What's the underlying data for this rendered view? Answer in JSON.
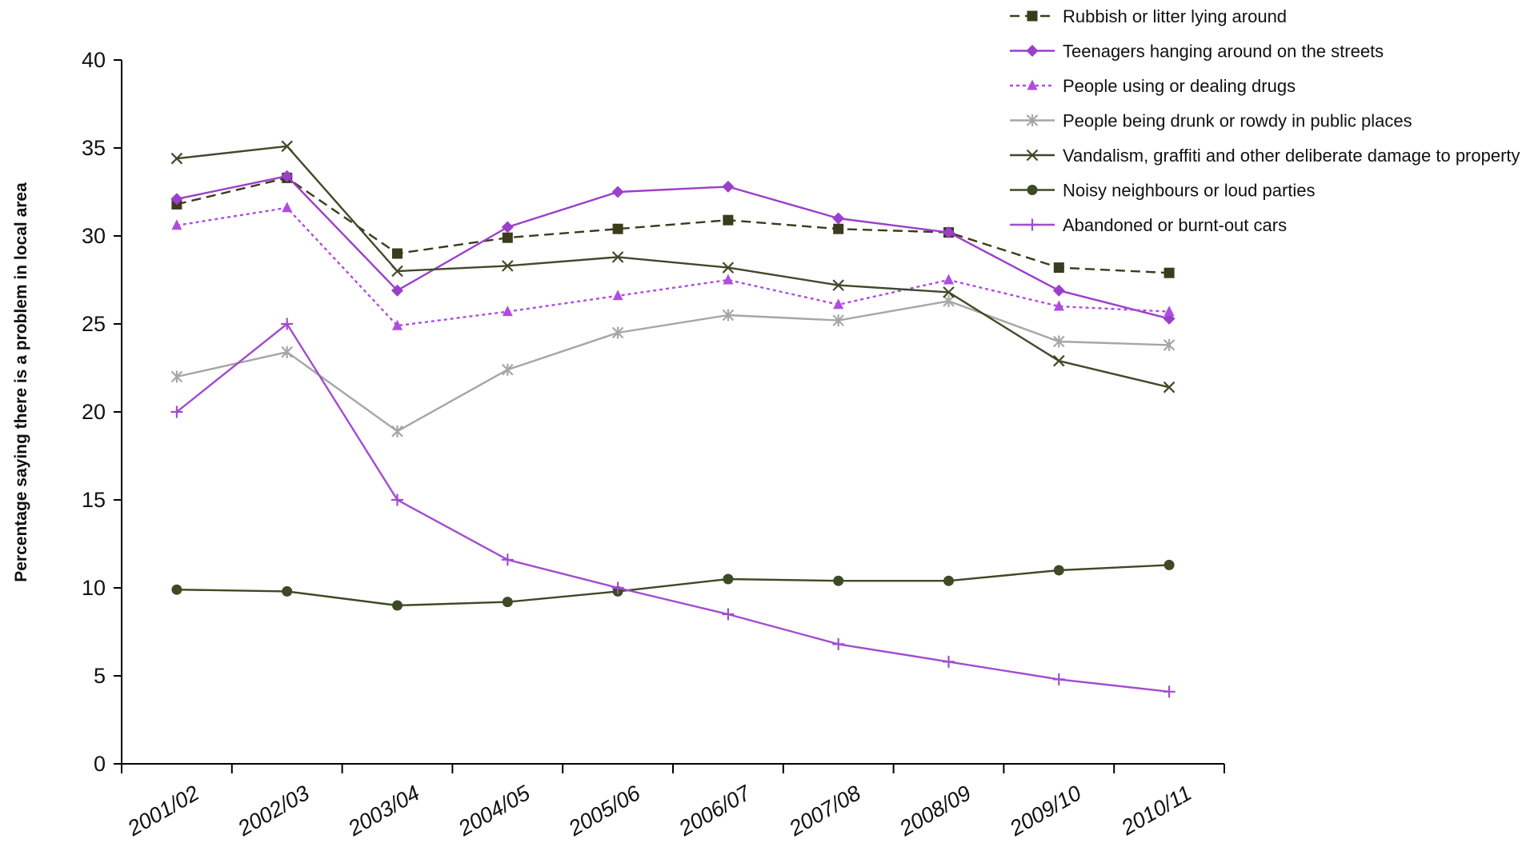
{
  "chart_data": {
    "type": "line",
    "title": "",
    "xlabel": "",
    "ylabel": "Percentage saying there is a problem in local area",
    "ylim": [
      0,
      40
    ],
    "yticks": [
      0,
      5,
      10,
      15,
      20,
      25,
      30,
      35,
      40
    ],
    "grid": false,
    "legend_position": "top-right",
    "categories": [
      "2001/02",
      "2002/03",
      "2003/04",
      "2004/05",
      "2005/06",
      "2006/07",
      "2007/08",
      "2008/09",
      "2009/10",
      "2010/11"
    ],
    "series": [
      {
        "name": "Rubbish or litter lying around",
        "color": "#3b3b1e",
        "dash": "dashed",
        "marker": "square",
        "values": [
          31.8,
          33.3,
          29.0,
          29.9,
          30.4,
          30.9,
          30.4,
          30.2,
          28.2,
          27.9
        ]
      },
      {
        "name": "Teenagers hanging around on the streets",
        "color": "#9b3fc9",
        "dash": "solid",
        "marker": "diamond",
        "values": [
          32.1,
          33.4,
          26.9,
          30.5,
          32.5,
          32.8,
          31.0,
          30.2,
          26.9,
          25.3
        ]
      },
      {
        "name": "People using or dealing drugs",
        "color": "#b04ce0",
        "dash": "dotted",
        "marker": "triangle",
        "values": [
          30.6,
          31.6,
          24.9,
          25.7,
          26.6,
          27.5,
          26.1,
          27.5,
          26.0,
          25.7
        ]
      },
      {
        "name": "People being drunk or rowdy in public places",
        "color": "#a6a6a6",
        "dash": "solid",
        "marker": "asterisk",
        "values": [
          22.0,
          23.4,
          18.9,
          22.4,
          24.5,
          25.5,
          25.2,
          26.3,
          24.0,
          23.8
        ]
      },
      {
        "name": "Vandalism, graffiti and other deliberate damage to property",
        "color": "#3f4a28",
        "dash": "solid",
        "marker": "x",
        "values": [
          34.4,
          35.1,
          28.0,
          28.3,
          28.8,
          28.2,
          27.2,
          26.8,
          22.9,
          21.4
        ]
      },
      {
        "name": "Noisy neighbours or loud parties",
        "color": "#3d4a25",
        "dash": "solid",
        "marker": "circle",
        "values": [
          9.9,
          9.8,
          9.0,
          9.2,
          9.8,
          10.5,
          10.4,
          10.4,
          11.0,
          11.3
        ]
      },
      {
        "name": "Abandoned or burnt-out cars",
        "color": "#a24ccf",
        "dash": "solid",
        "marker": "plus",
        "values": [
          20.0,
          25.0,
          15.0,
          11.6,
          10.0,
          8.5,
          6.8,
          5.8,
          4.8,
          4.1
        ]
      }
    ]
  }
}
